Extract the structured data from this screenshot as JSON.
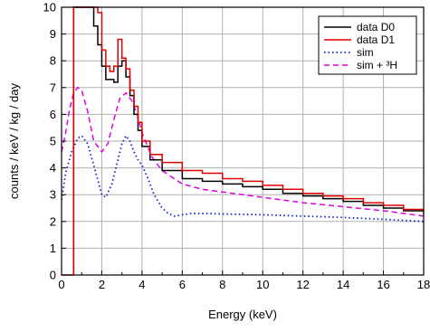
{
  "chart_data": {
    "type": "line",
    "title": "",
    "xlabel": "Energy (keV)",
    "ylabel": "counts / keV / kg / day",
    "xlim": [
      0,
      18
    ],
    "ylim": [
      0,
      10
    ],
    "x_ticks": [
      0,
      2,
      4,
      6,
      8,
      10,
      12,
      14,
      16,
      18
    ],
    "y_ticks": [
      0,
      1,
      2,
      3,
      4,
      5,
      6,
      7,
      8,
      9,
      10
    ],
    "grid": true,
    "legend_position": "top-right",
    "series": [
      {
        "name": "data D0",
        "color": "#000000",
        "style": "step-solid",
        "x": [
          0.6,
          0.7,
          1.0,
          1.3,
          1.6,
          1.8,
          2.0,
          2.2,
          2.4,
          2.6,
          2.8,
          3.0,
          3.2,
          3.4,
          3.6,
          3.8,
          4.0,
          4.4,
          5.0,
          6.0,
          7.0,
          8.0,
          9.0,
          10.0,
          11.0,
          12.0,
          13.0,
          14.0,
          15.0,
          16.0,
          17.0,
          18.0
        ],
        "y": [
          10.0,
          10.0,
          10.0,
          10.0,
          9.3,
          8.6,
          7.8,
          7.3,
          7.3,
          7.2,
          7.8,
          8.0,
          7.4,
          6.7,
          6.0,
          5.4,
          4.8,
          4.3,
          3.9,
          3.6,
          3.5,
          3.4,
          3.3,
          3.2,
          3.05,
          2.95,
          2.85,
          2.75,
          2.6,
          2.5,
          2.4,
          2.25
        ]
      },
      {
        "name": "data D1",
        "color": "#e00000",
        "style": "step-solid",
        "x": [
          0.6,
          0.7,
          1.0,
          1.3,
          1.6,
          1.8,
          2.0,
          2.2,
          2.4,
          2.6,
          2.8,
          3.0,
          3.2,
          3.4,
          3.6,
          3.8,
          4.0,
          4.4,
          5.0,
          6.0,
          7.0,
          8.0,
          9.0,
          10.0,
          11.0,
          12.0,
          13.0,
          14.0,
          15.0,
          16.0,
          17.0,
          18.0
        ],
        "y": [
          10.0,
          10.0,
          10.0,
          10.0,
          10.0,
          9.8,
          8.4,
          7.8,
          7.6,
          7.8,
          8.8,
          8.1,
          7.7,
          6.9,
          6.3,
          5.7,
          5.0,
          4.5,
          4.2,
          3.9,
          3.8,
          3.6,
          3.5,
          3.35,
          3.2,
          3.05,
          2.95,
          2.85,
          2.7,
          2.6,
          2.45,
          2.3
        ]
      },
      {
        "name": "sim",
        "color": "#1020d0",
        "style": "dotted",
        "x": [
          0.0,
          0.2,
          0.5,
          0.8,
          1.0,
          1.3,
          1.6,
          2.0,
          2.2,
          2.5,
          2.8,
          3.0,
          3.2,
          3.4,
          3.6,
          3.8,
          4.0,
          4.3,
          4.6,
          5.0,
          5.3,
          5.6,
          6.0,
          6.5,
          7.0,
          8.0,
          10.0,
          12.0,
          14.0,
          16.0,
          18.0
        ],
        "y": [
          2.8,
          3.8,
          4.6,
          5.1,
          5.2,
          4.9,
          4.1,
          3.0,
          2.9,
          3.4,
          4.3,
          4.9,
          5.2,
          5.0,
          4.6,
          4.3,
          4.1,
          3.6,
          3.0,
          2.5,
          2.3,
          2.2,
          2.25,
          2.3,
          2.3,
          2.28,
          2.25,
          2.2,
          2.15,
          2.08,
          2.0
        ]
      },
      {
        "name": "sim + ³H",
        "color": "#e000e0",
        "style": "dashed",
        "x": [
          0.0,
          0.2,
          0.4,
          0.6,
          0.8,
          1.0,
          1.3,
          1.6,
          2.0,
          2.3,
          2.6,
          2.9,
          3.2,
          3.5,
          3.8,
          4.0,
          4.5,
          5.0,
          6.0,
          7.0,
          8.0,
          9.0,
          10.0,
          12.0,
          14.0,
          16.0,
          18.0
        ],
        "y": [
          4.6,
          5.3,
          6.2,
          6.8,
          7.0,
          6.9,
          6.1,
          5.0,
          4.6,
          4.9,
          5.8,
          6.6,
          6.8,
          6.5,
          5.9,
          5.3,
          4.4,
          3.9,
          3.4,
          3.2,
          3.1,
          3.0,
          2.9,
          2.7,
          2.55,
          2.4,
          2.2
        ]
      }
    ]
  }
}
